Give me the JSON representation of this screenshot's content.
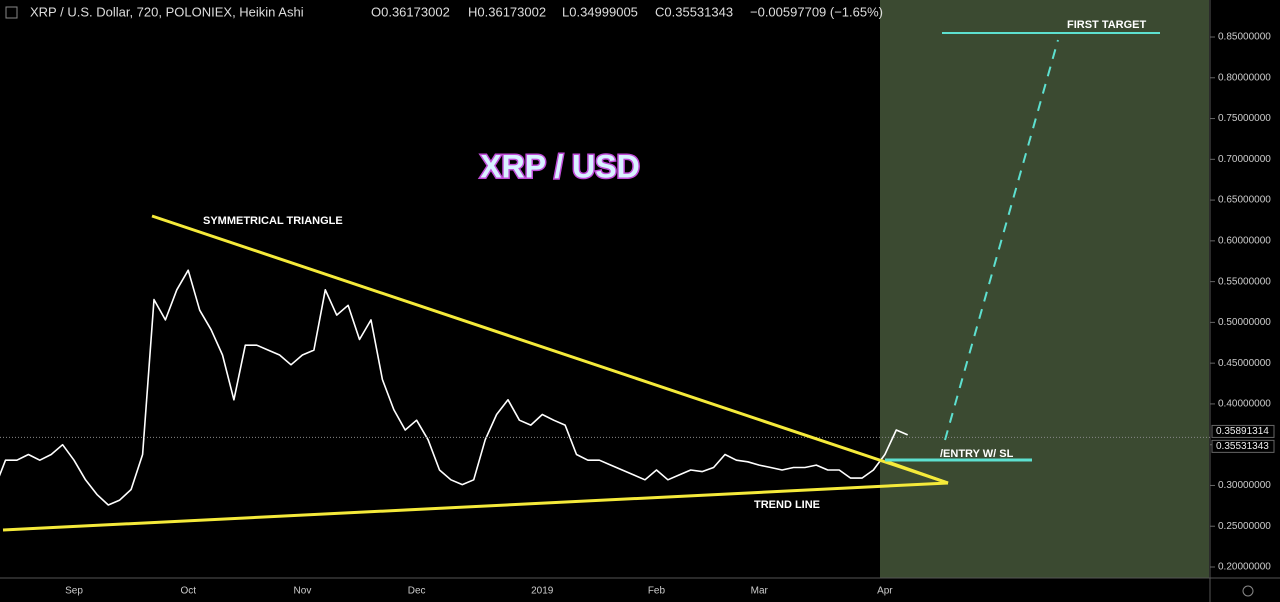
{
  "chart_data": {
    "type": "line",
    "title": "XRP / U.S. Dollar, 720, POLONIEX, Heikin Ashi",
    "ohlc": [
      "O0.36173002",
      "H0.36173002",
      "L0.34999005",
      "C0.35531343",
      "−0.00597709 (−1.65%)"
    ],
    "headline": "XRP / USD",
    "annotations": [
      "SYMMETRICAL TRIANGLE",
      "TREND LINE",
      "/ENTRY W/ SL",
      "FIRST TARGET"
    ],
    "categories": [
      null,
      null,
      null,
      null,
      null,
      null,
      null,
      "Sep",
      null,
      null,
      null,
      null,
      null,
      null,
      null,
      null,
      null,
      "Oct",
      null,
      null,
      null,
      null,
      null,
      null,
      null,
      null,
      null,
      "Nov",
      null,
      null,
      null,
      null,
      null,
      null,
      null,
      null,
      null,
      "Dec",
      null,
      null,
      null,
      null,
      null,
      null,
      null,
      null,
      null,
      null,
      "2019",
      null,
      null,
      null,
      null,
      null,
      null,
      null,
      null,
      null,
      "Feb",
      null,
      null,
      null,
      null,
      null,
      null,
      null,
      null,
      "Mar",
      null,
      null,
      null,
      null,
      null,
      null,
      null,
      null,
      null,
      null,
      "Apr",
      null,
      null
    ],
    "values": [
      0.295,
      0.331,
      0.331,
      0.338,
      0.331,
      0.338,
      0.35,
      0.331,
      0.307,
      0.289,
      0.276,
      0.282,
      0.295,
      0.338,
      0.528,
      0.503,
      0.54,
      0.564,
      0.515,
      0.491,
      0.46,
      0.405,
      0.472,
      0.472,
      0.466,
      0.46,
      0.448,
      0.46,
      0.466,
      0.54,
      0.509,
      0.521,
      0.479,
      0.503,
      0.43,
      0.393,
      0.368,
      0.38,
      0.356,
      0.319,
      0.307,
      0.301,
      0.307,
      0.356,
      0.387,
      0.405,
      0.38,
      0.374,
      0.387,
      0.38,
      0.374,
      0.338,
      0.331,
      0.331,
      0.325,
      0.319,
      0.313,
      0.307,
      0.319,
      0.307,
      0.313,
      0.319,
      0.317,
      0.322,
      0.338,
      0.331,
      0.329,
      0.325,
      0.322,
      0.319,
      0.322,
      0.322,
      0.325,
      0.319,
      0.319,
      0.309,
      0.309,
      0.319,
      0.338,
      0.368,
      0.362
    ],
    "color": "#ffffff",
    "ylim": [
      0.1865,
      0.8954
    ],
    "yticks": [
      {
        "value": 0.2,
        "label": "0.20000000"
      },
      {
        "value": 0.25,
        "label": "0.25000000"
      },
      {
        "value": 0.3,
        "label": "0.30000000"
      },
      {
        "value": 0.35,
        "label": "0.35000000"
      },
      {
        "value": 0.4,
        "label": "0.40000000"
      },
      {
        "value": 0.45,
        "label": "0.45000000"
      },
      {
        "value": 0.5,
        "label": "0.50000000"
      },
      {
        "value": 0.55,
        "label": "0.55000000"
      },
      {
        "value": 0.6,
        "label": "0.60000000"
      },
      {
        "value": 0.65,
        "label": "0.65000000"
      },
      {
        "value": 0.7,
        "label": "0.70000000"
      },
      {
        "value": 0.75,
        "label": "0.75000000"
      },
      {
        "value": 0.8,
        "label": "0.80000000"
      },
      {
        "value": 0.85,
        "label": "0.85000000"
      }
    ],
    "price_markers": [
      0.35891314,
      0.35531343
    ]
  }
}
